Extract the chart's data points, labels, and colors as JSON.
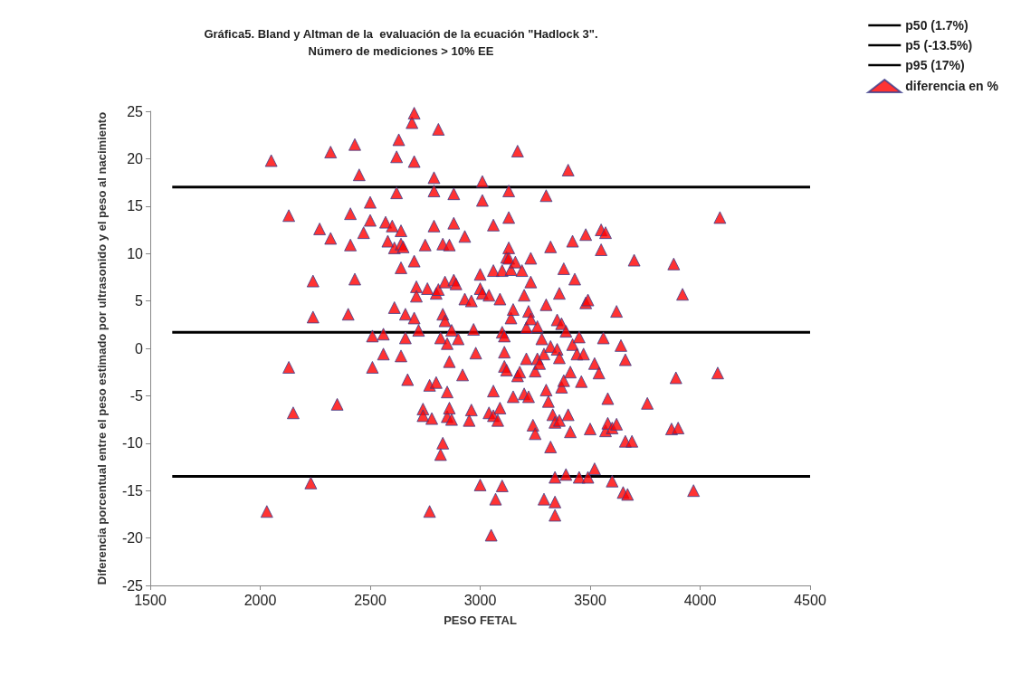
{
  "chart_data": {
    "type": "scatter",
    "title": "Gráfica5. Bland y Altman de la  evaluación de la ecuación \"Hadlock 3\".",
    "subtitle": "Número de mediciones > 10% EE",
    "xlabel": "PESO FETAL",
    "ylabel": "Diferencia porcentual entre el peso estimado por ultrasonido y el peso al nacimiento",
    "xlim": [
      1500,
      4500
    ],
    "xticks": [
      1500,
      2000,
      2500,
      3000,
      3500,
      4000,
      4500
    ],
    "ylim": [
      -25,
      25
    ],
    "yticks": [
      -25,
      -20,
      -15,
      -10,
      -5,
      0,
      5,
      10,
      15,
      20,
      25
    ],
    "grid": false,
    "legend": "top right",
    "series": [
      {
        "name": "p50 (1.7%)",
        "type": "line",
        "marker": "none",
        "color": "#000000",
        "x": [
          1600,
          4500
        ],
        "values": [
          1.7,
          1.7
        ]
      },
      {
        "name": "p5 (-13.5%)",
        "type": "line",
        "marker": "none",
        "color": "#000000",
        "x": [
          1600,
          4500
        ],
        "values": [
          -13.5,
          -13.5
        ]
      },
      {
        "name": "p95 (17%)",
        "type": "line",
        "marker": "none",
        "color": "#000000",
        "x": [
          1600,
          4500
        ],
        "values": [
          17,
          17
        ]
      },
      {
        "name": "diferencia en %",
        "marker": "triangle",
        "color": "#ff0000",
        "x": [
          2050,
          2130,
          2130,
          2150,
          2240,
          2240,
          2230,
          2030,
          2270,
          2320,
          2320,
          2350,
          2400,
          2410,
          2410,
          2430,
          2430,
          2450,
          2470,
          2500,
          2500,
          2510,
          2510,
          2560,
          2560,
          2570,
          2580,
          2600,
          2610,
          2610,
          2620,
          2620,
          2630,
          2640,
          2640,
          2640,
          2650,
          2640,
          2660,
          2660,
          2670,
          2690,
          2700,
          2700,
          2700,
          2700,
          2710,
          2710,
          2720,
          2740,
          2740,
          2750,
          2760,
          2770,
          2770,
          2780,
          2790,
          2790,
          2790,
          2800,
          2800,
          2810,
          2810,
          2820,
          2820,
          2830,
          2830,
          2830,
          2840,
          2840,
          2850,
          2850,
          2850,
          2860,
          2860,
          2860,
          2870,
          2870,
          2880,
          2880,
          2880,
          2890,
          2900,
          2920,
          2930,
          2930,
          2950,
          2960,
          2960,
          2970,
          2980,
          3000,
          3000,
          3000,
          3010,
          3010,
          3010,
          3040,
          3040,
          3050,
          3060,
          3060,
          3060,
          3060,
          3070,
          3080,
          3090,
          3090,
          3100,
          3100,
          3100,
          3110,
          3110,
          3110,
          3120,
          3120,
          3130,
          3130,
          3130,
          3130,
          3140,
          3140,
          3150,
          3150,
          3160,
          3170,
          3170,
          3180,
          3190,
          3200,
          3200,
          3210,
          3210,
          3220,
          3220,
          3230,
          3230,
          3230,
          3240,
          3250,
          3250,
          3260,
          3260,
          3270,
          3280,
          3290,
          3290,
          3300,
          3300,
          3300,
          3310,
          3320,
          3320,
          3320,
          3330,
          3340,
          3340,
          3340,
          3340,
          3350,
          3350,
          3360,
          3360,
          3360,
          3370,
          3370,
          3380,
          3380,
          3390,
          3390,
          3400,
          3400,
          3410,
          3410,
          3420,
          3420,
          3430,
          3440,
          3450,
          3450,
          3460,
          3470,
          3480,
          3480,
          3490,
          3490,
          3500,
          3520,
          3520,
          3540,
          3550,
          3550,
          3560,
          3570,
          3570,
          3580,
          3580,
          3600,
          3600,
          3620,
          3620,
          3640,
          3650,
          3660,
          3660,
          3670,
          3690,
          3700,
          3760,
          3870,
          3880,
          3890,
          3900,
          3920,
          3970,
          4080,
          4090
        ],
        "values": [
          19.8,
          14,
          -2,
          -6.8,
          7.1,
          3.3,
          -14.2,
          -17.2,
          12.6,
          20.7,
          11.6,
          -5.9,
          3.6,
          14.2,
          10.9,
          21.5,
          7.3,
          18.3,
          12.2,
          15.4,
          13.5,
          1.3,
          -2,
          1.5,
          -0.6,
          13.3,
          11.3,
          12.9,
          10.6,
          4.3,
          16.4,
          20.2,
          22,
          12.4,
          11,
          8.5,
          10.7,
          -0.8,
          1.1,
          3.6,
          -3.3,
          23.8,
          24.8,
          19.7,
          9.2,
          3.2,
          6.5,
          5.5,
          1.9,
          -6.4,
          -7.1,
          10.9,
          6.3,
          -3.9,
          -17.2,
          -7.4,
          18,
          16.6,
          12.9,
          5.8,
          -3.6,
          23.1,
          6.2,
          1.1,
          -11.2,
          11,
          3.6,
          -10,
          7,
          2.9,
          -7.2,
          -4.6,
          0.5,
          10.9,
          -6.3,
          -1.4,
          -7.5,
          1.9,
          16.3,
          13.2,
          7.2,
          6.8,
          1,
          -2.8,
          11.8,
          5.2,
          -7.6,
          5,
          -6.5,
          2,
          -0.5,
          7.8,
          6.3,
          -14.4,
          5.8,
          17.6,
          15.6,
          5.6,
          -6.8,
          -19.7,
          13,
          8.2,
          -4.5,
          -7.1,
          -15.9,
          -7.6,
          -6.3,
          5.2,
          8.2,
          1.7,
          -14.5,
          1.3,
          -1.9,
          -0.4,
          9.6,
          -2.3,
          13.8,
          16.6,
          10.6,
          9.5,
          8.3,
          3.2,
          4.1,
          -5.1,
          9.1,
          20.8,
          -2.9,
          -2.5,
          8.2,
          5.6,
          -4.8,
          2.2,
          -1.1,
          3.9,
          -5.1,
          7,
          3.1,
          9.5,
          -8.1,
          -9,
          -2.4,
          -1.1,
          2.3,
          -1.6,
          1,
          -15.9,
          -0.6,
          16.1,
          4.6,
          -4.4,
          -5.6,
          -10.4,
          0.2,
          10.7,
          -7,
          -17.6,
          -16.2,
          -13.6,
          -7.8,
          -0.1,
          3,
          -1,
          -7.6,
          5.8,
          2.6,
          -4.1,
          8.4,
          -3.4,
          -13.3,
          1.8,
          18.8,
          -7,
          -8.8,
          -2.5,
          11.3,
          0.4,
          7.3,
          -0.6,
          1.2,
          -13.6,
          -3.5,
          -0.6,
          4.8,
          12,
          5.1,
          -13.6,
          -8.5,
          -12.7,
          -1.6,
          -2.6,
          12.5,
          10.4,
          1.1,
          12.2,
          -8.7,
          -5.3,
          -7.9,
          -14,
          -8.4,
          -8,
          3.9,
          0.3,
          -15.2,
          -9.8,
          -1.2,
          -15.4,
          -9.8,
          9.3,
          -5.8,
          -8.5,
          8.9,
          -3.1,
          -8.4,
          5.7,
          -15,
          -2.6,
          13.8
        ]
      }
    ]
  }
}
